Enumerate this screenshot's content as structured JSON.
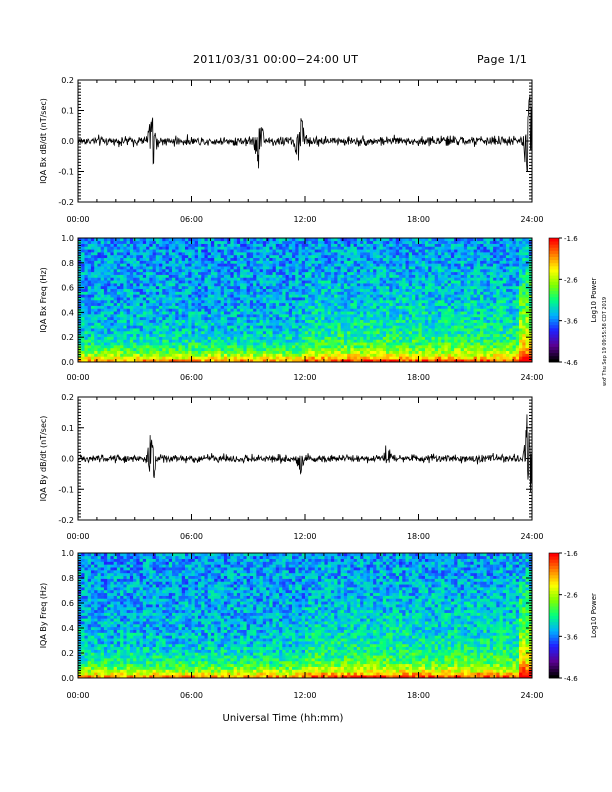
{
  "header": {
    "title": "2011/03/31   00:00−24:00 UT",
    "page": "Page 1/1"
  },
  "footer_xlabel": "Universal Time (hh:mm)",
  "side_stamp": "wxf Thu Sep 19 09:55:58 CDT 2019",
  "chart_data": [
    {
      "type": "line",
      "title": "",
      "ylabel": "IQA Bx dB/dt (nT/sec)",
      "xlabel": "",
      "xlim": [
        "00:00",
        "24:00"
      ],
      "xticks": [
        "00:00",
        "06:00",
        "12:00",
        "18:00",
        "24:00"
      ],
      "ylim": [
        -0.2,
        0.2
      ],
      "yticks": [
        "-0.2",
        "-0.1",
        "0.0",
        "0.1",
        "0.2"
      ],
      "series_color": "#000000",
      "baseline_noise": 0.015,
      "features": [
        {
          "t": "03:53",
          "peak": 0.1
        },
        {
          "t": "04:00",
          "peak": -0.13
        },
        {
          "t": "09:30",
          "peak": -0.1
        },
        {
          "t": "09:40",
          "peak": 0.07
        },
        {
          "t": "11:36",
          "peak": -0.08
        },
        {
          "t": "11:48",
          "peak": 0.1
        },
        {
          "t": "23:55",
          "peak": 0.2
        },
        {
          "t": "23:45",
          "peak": -0.13
        }
      ]
    },
    {
      "type": "heatmap",
      "title": "",
      "ylabel": "IQA Bx Freq (Hz)",
      "xlabel": "",
      "xlim": [
        "00:00",
        "24:00"
      ],
      "xticks": [
        "00:00",
        "06:00",
        "12:00",
        "18:00",
        "24:00"
      ],
      "ylim": [
        0,
        1.0
      ],
      "yticks": [
        "0.0",
        "0.2",
        "0.4",
        "0.6",
        "0.8",
        "1.0"
      ],
      "colorbar": {
        "label": "Log10 Power",
        "ticks": [
          "-1.6",
          "-2.6",
          "-3.6",
          "-4.6"
        ],
        "range": [
          -4.6,
          -1.6
        ]
      },
      "colormap": [
        "#000000",
        "#5a0090",
        "#2020ff",
        "#00b0ff",
        "#00ff80",
        "#80ff00",
        "#ffff00",
        "#ff8000",
        "#ff0000"
      ]
    },
    {
      "type": "line",
      "title": "",
      "ylabel": "IQA By dB/dt (nT/sec)",
      "xlabel": "",
      "xlim": [
        "00:00",
        "24:00"
      ],
      "xticks": [
        "00:00",
        "06:00",
        "12:00",
        "18:00",
        "24:00"
      ],
      "ylim": [
        -0.2,
        0.2
      ],
      "yticks": [
        "-0.2",
        "-0.1",
        "0.0",
        "0.1",
        "0.2"
      ],
      "series_color": "#000000",
      "baseline_noise": 0.012,
      "features": [
        {
          "t": "03:50",
          "peak": 0.09
        },
        {
          "t": "03:55",
          "peak": -0.12
        },
        {
          "t": "11:45",
          "peak": -0.05
        },
        {
          "t": "16:20",
          "peak": 0.05
        },
        {
          "t": "23:45",
          "peak": 0.14
        },
        {
          "t": "23:55",
          "peak": -0.15
        }
      ]
    },
    {
      "type": "heatmap",
      "title": "",
      "ylabel": "IQA By Freq (Hz)",
      "xlabel": "",
      "xlim": [
        "00:00",
        "24:00"
      ],
      "xticks": [
        "00:00",
        "06:00",
        "12:00",
        "18:00",
        "24:00"
      ],
      "ylim": [
        0,
        1.0
      ],
      "yticks": [
        "0.0",
        "0.2",
        "0.4",
        "0.6",
        "0.8",
        "1.0"
      ],
      "colorbar": {
        "label": "Log10 Power",
        "ticks": [
          "-1.6",
          "-2.6",
          "-3.6",
          "-4.6"
        ],
        "range": [
          -4.6,
          -1.6
        ]
      },
      "colormap": [
        "#000000",
        "#5a0090",
        "#2020ff",
        "#00b0ff",
        "#00ff80",
        "#80ff00",
        "#ffff00",
        "#ff8000",
        "#ff0000"
      ]
    }
  ]
}
